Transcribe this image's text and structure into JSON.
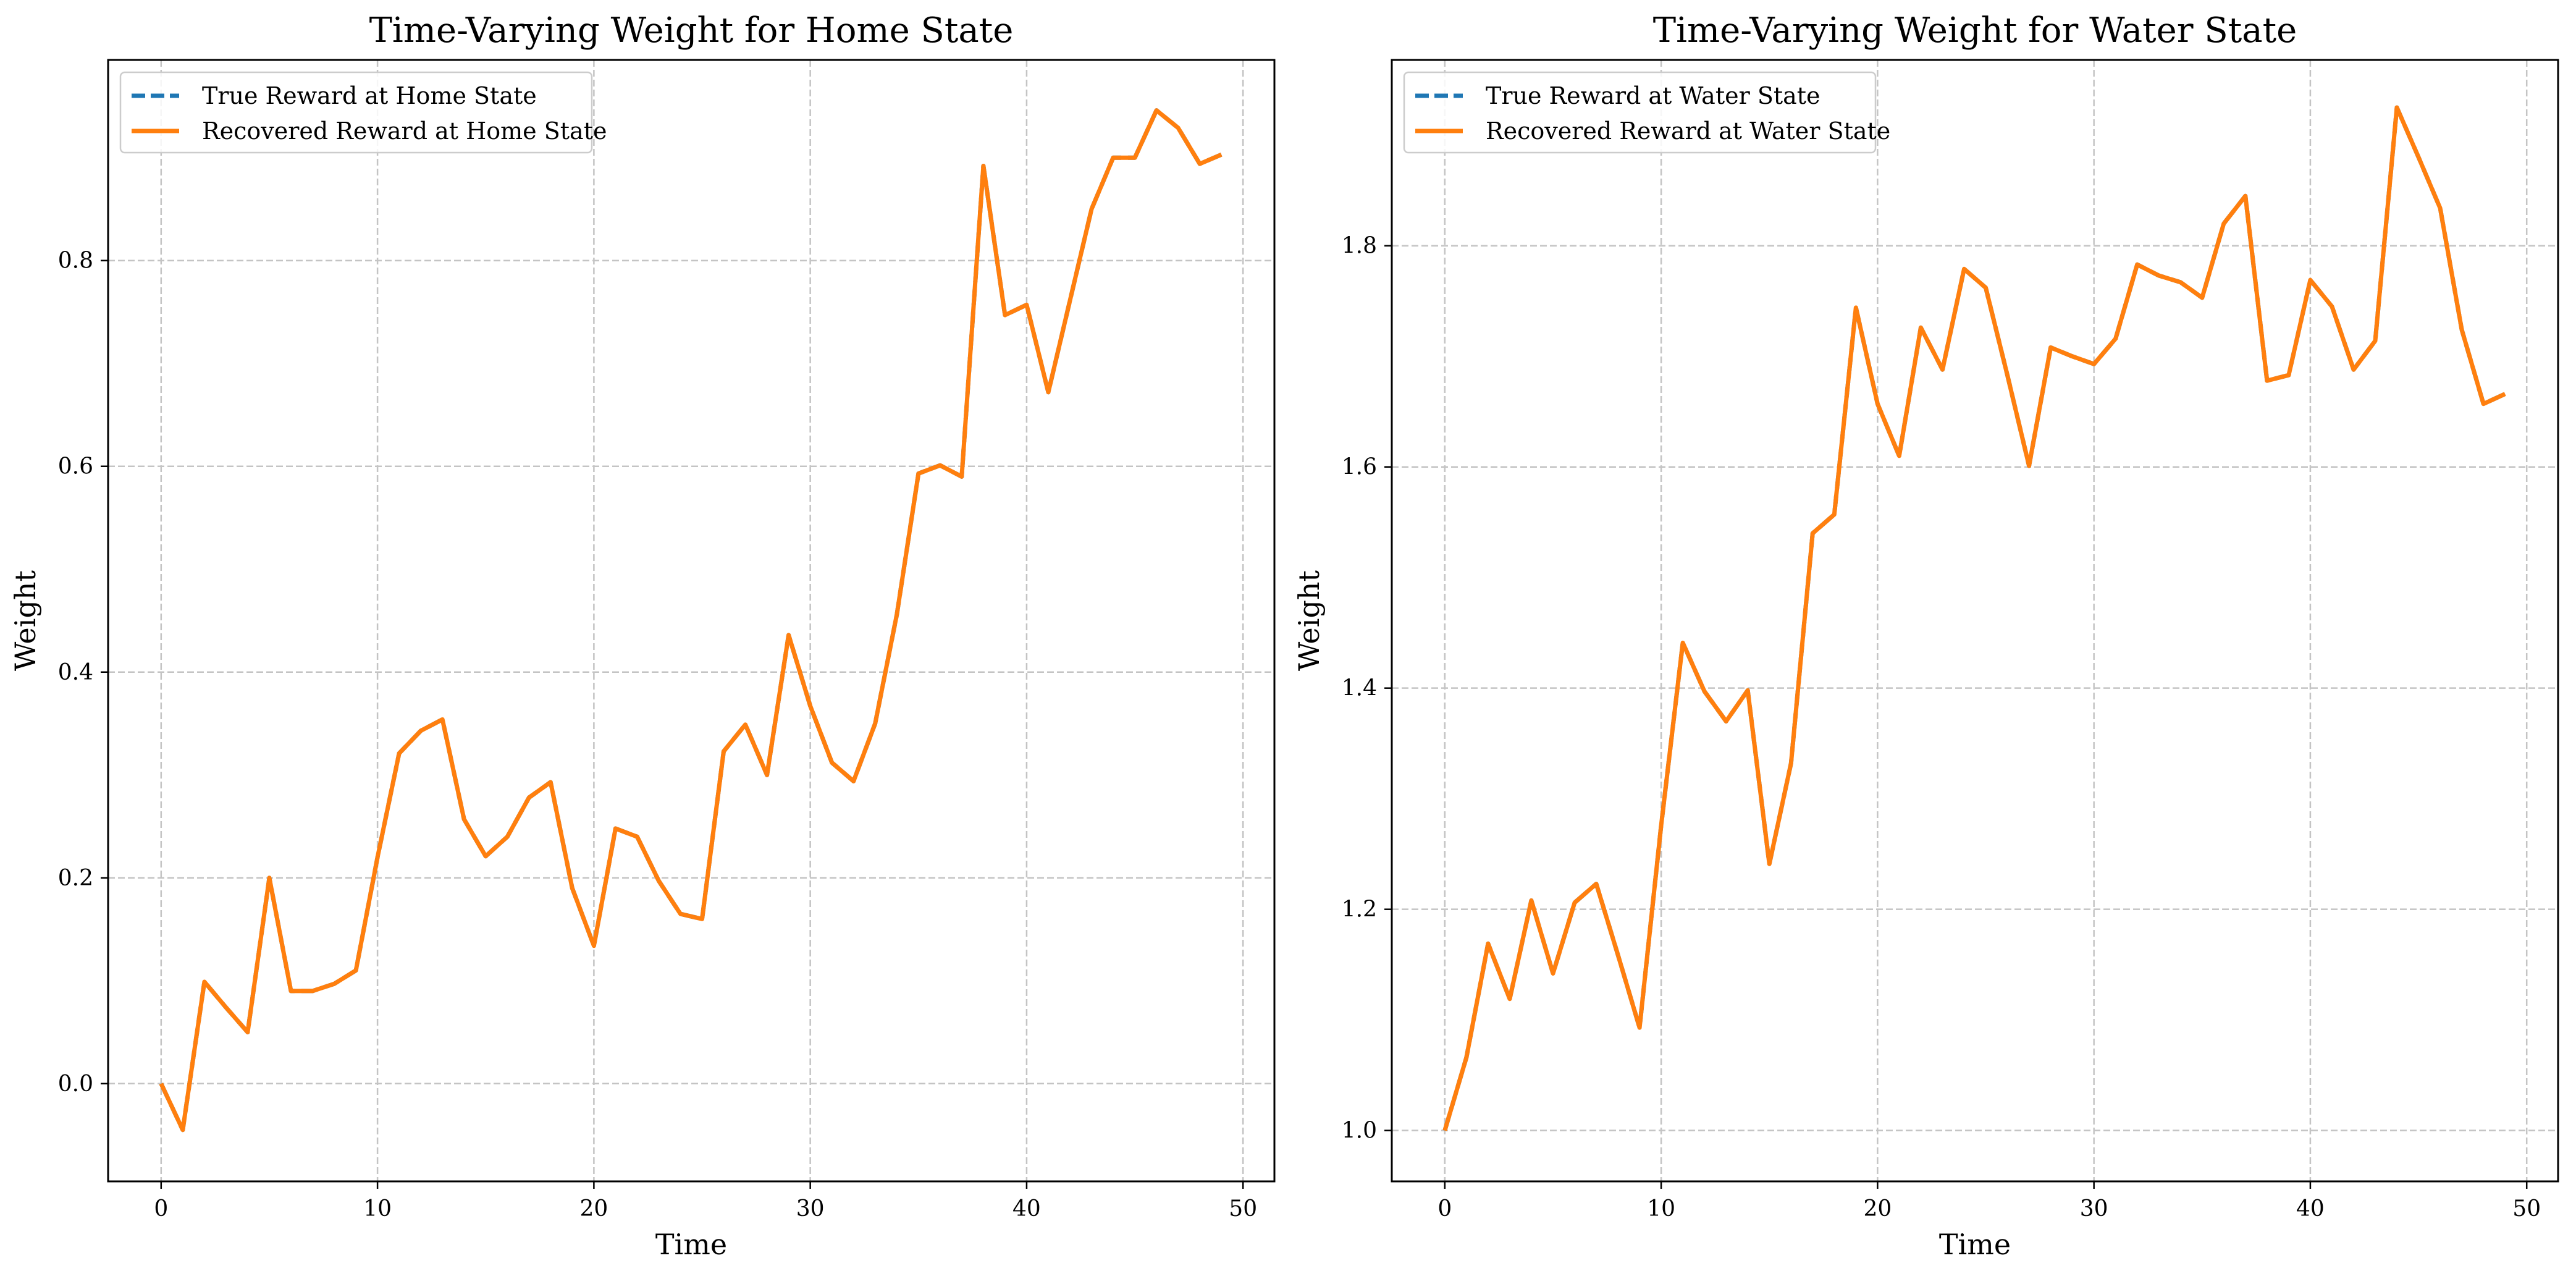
{
  "chart_data": [
    {
      "type": "line",
      "title": "Time-Varying Weight for Home State",
      "xlabel": "Time",
      "ylabel": "Weight",
      "xlim": [
        -2.45,
        51.45
      ],
      "ylim": [
        -0.095,
        0.995
      ],
      "xticks": [
        0,
        10,
        20,
        30,
        40,
        50
      ],
      "xtick_labels": [
        "0",
        "10",
        "20",
        "30",
        "40",
        "50"
      ],
      "yticks": [
        0.0,
        0.2,
        0.4,
        0.6,
        0.8
      ],
      "ytick_labels": [
        "0.0",
        "0.2",
        "0.4",
        "0.6",
        "0.8"
      ],
      "grid": true,
      "legend_position": "top-left",
      "x": [
        0,
        1,
        2,
        3,
        4,
        5,
        6,
        7,
        8,
        9,
        10,
        11,
        12,
        13,
        14,
        15,
        16,
        17,
        18,
        19,
        20,
        21,
        22,
        23,
        24,
        25,
        26,
        27,
        28,
        29,
        30,
        31,
        32,
        33,
        34,
        35,
        36,
        37,
        38,
        39,
        40,
        41,
        42,
        43,
        44,
        45,
        46,
        47,
        48,
        49
      ],
      "series": [
        {
          "name": "True Reward at Home State",
          "color": "#1f77b4",
          "linestyle": "dashed",
          "values": [
            0.0,
            -0.045,
            0.099,
            0.074,
            0.05,
            0.2,
            0.09,
            0.09,
            0.097,
            0.11,
            0.22,
            0.321,
            0.343,
            0.354,
            0.257,
            0.221,
            0.24,
            0.278,
            0.293,
            0.19,
            0.134,
            0.248,
            0.24,
            0.197,
            0.165,
            0.16,
            0.323,
            0.349,
            0.3,
            0.436,
            0.367,
            0.312,
            0.294,
            0.35,
            0.456,
            0.593,
            0.601,
            0.59,
            0.892,
            0.747,
            0.757,
            0.672,
            0.761,
            0.85,
            0.9,
            0.9,
            0.946,
            0.929,
            0.894,
            0.903
          ]
        },
        {
          "name": "Recovered Reward at Home State",
          "color": "#ff7f0e",
          "linestyle": "solid",
          "values": [
            0.0,
            -0.045,
            0.099,
            0.074,
            0.05,
            0.2,
            0.09,
            0.09,
            0.097,
            0.11,
            0.22,
            0.321,
            0.343,
            0.354,
            0.257,
            0.221,
            0.24,
            0.278,
            0.293,
            0.19,
            0.134,
            0.248,
            0.24,
            0.197,
            0.165,
            0.16,
            0.323,
            0.349,
            0.3,
            0.436,
            0.367,
            0.312,
            0.294,
            0.35,
            0.456,
            0.593,
            0.601,
            0.59,
            0.892,
            0.747,
            0.757,
            0.672,
            0.761,
            0.85,
            0.9,
            0.9,
            0.946,
            0.929,
            0.894,
            0.903
          ]
        }
      ]
    },
    {
      "type": "line",
      "title": "Time-Varying Weight for Water State",
      "xlabel": "Time",
      "ylabel": "Weight",
      "xlim": [
        -2.45,
        51.45
      ],
      "ylim": [
        0.954,
        1.968
      ],
      "xticks": [
        0,
        10,
        20,
        30,
        40,
        50
      ],
      "xtick_labels": [
        "0",
        "10",
        "20",
        "30",
        "40",
        "50"
      ],
      "yticks": [
        1.0,
        1.2,
        1.4,
        1.6,
        1.8
      ],
      "ytick_labels": [
        "1.0",
        "1.2",
        "1.4",
        "1.6",
        "1.8"
      ],
      "grid": true,
      "legend_position": "top-left",
      "x": [
        0,
        1,
        2,
        3,
        4,
        5,
        6,
        7,
        8,
        9,
        10,
        11,
        12,
        13,
        14,
        15,
        16,
        17,
        18,
        19,
        20,
        21,
        22,
        23,
        24,
        25,
        26,
        27,
        28,
        29,
        30,
        31,
        32,
        33,
        34,
        35,
        36,
        37,
        38,
        39,
        40,
        41,
        42,
        43,
        44,
        45,
        46,
        47,
        48,
        49
      ],
      "series": [
        {
          "name": "True Reward at Water State",
          "color": "#1f77b4",
          "linestyle": "dashed",
          "values": [
            1.0,
            1.066,
            1.169,
            1.119,
            1.208,
            1.142,
            1.206,
            1.223,
            1.159,
            1.093,
            1.276,
            1.441,
            1.397,
            1.37,
            1.398,
            1.241,
            1.332,
            1.54,
            1.557,
            1.744,
            1.657,
            1.61,
            1.726,
            1.688,
            1.779,
            1.762,
            1.683,
            1.601,
            1.708,
            1.7,
            1.693,
            1.716,
            1.783,
            1.773,
            1.767,
            1.753,
            1.82,
            1.845,
            1.678,
            1.683,
            1.769,
            1.745,
            1.688,
            1.714,
            1.925,
            1.88,
            1.834,
            1.724,
            1.657,
            1.666
          ]
        },
        {
          "name": "Recovered Reward at Water State",
          "color": "#ff7f0e",
          "linestyle": "solid",
          "values": [
            1.0,
            1.066,
            1.169,
            1.119,
            1.208,
            1.142,
            1.206,
            1.223,
            1.159,
            1.093,
            1.276,
            1.441,
            1.397,
            1.37,
            1.398,
            1.241,
            1.332,
            1.54,
            1.557,
            1.744,
            1.657,
            1.61,
            1.726,
            1.688,
            1.779,
            1.762,
            1.683,
            1.601,
            1.708,
            1.7,
            1.693,
            1.716,
            1.783,
            1.773,
            1.767,
            1.753,
            1.82,
            1.845,
            1.678,
            1.683,
            1.769,
            1.745,
            1.688,
            1.714,
            1.925,
            1.88,
            1.834,
            1.724,
            1.657,
            1.666
          ]
        }
      ]
    }
  ]
}
